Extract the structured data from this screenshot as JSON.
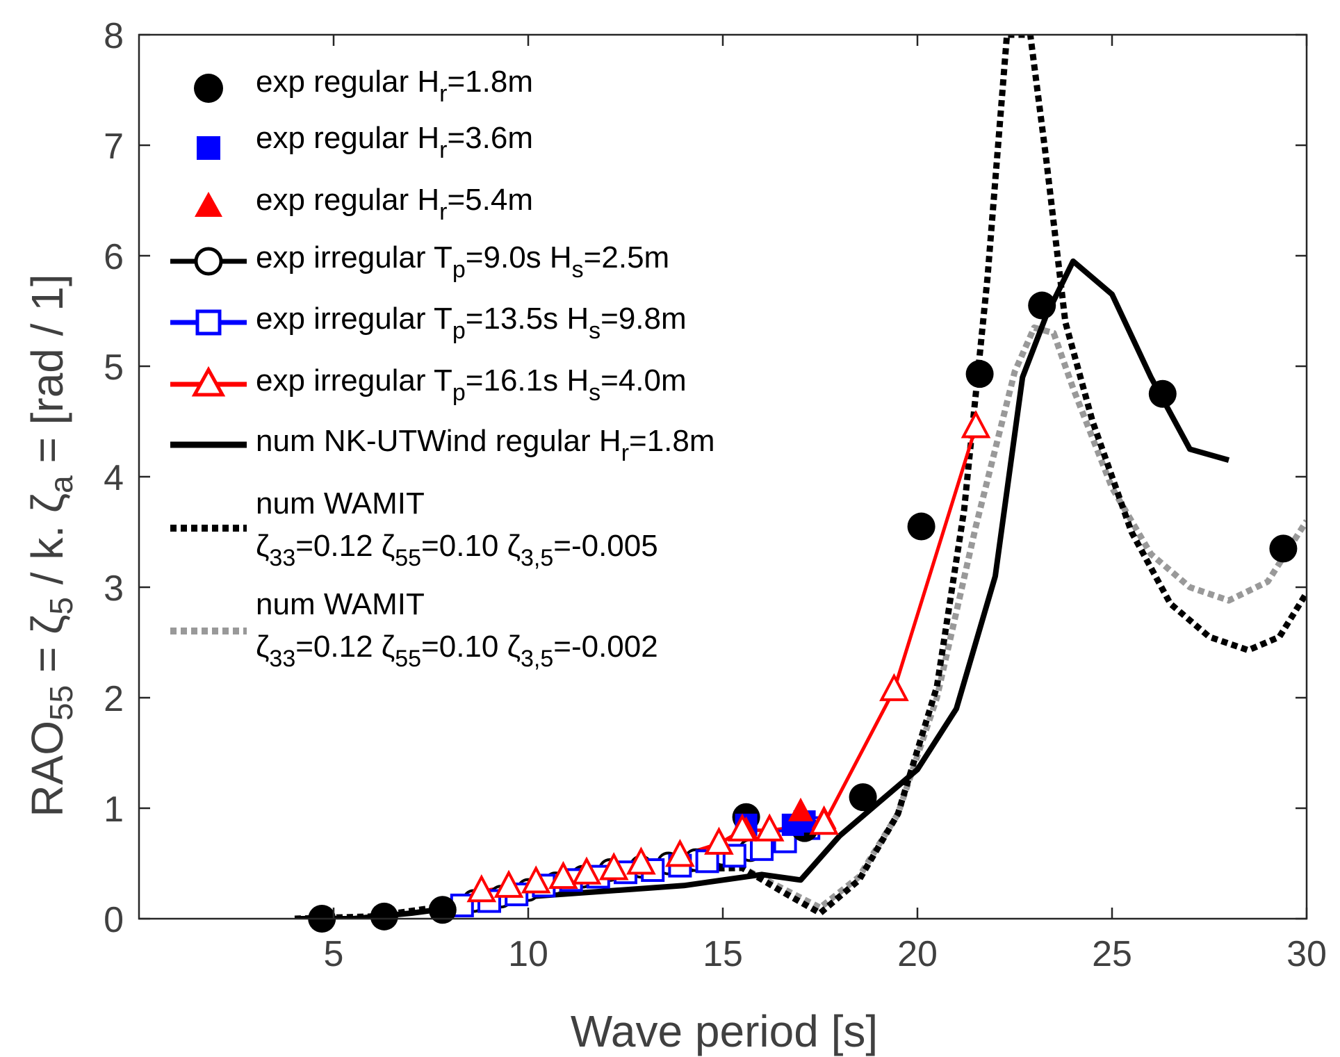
{
  "chart_data": {
    "type": "line",
    "title": "",
    "xlabel": "Wave period [s]",
    "ylabel": {
      "main": "RAO",
      "sub1": "55",
      "mid1": " = ",
      "zeta": "ζ",
      "sub2": "5",
      "mid2": " / k. ",
      "zeta2": "ζ",
      "sub3": "a",
      "tail": "  = [rad / 1]"
    },
    "xlim": [
      0,
      30
    ],
    "ylim": [
      0,
      8
    ],
    "xticks": [
      5,
      10,
      15,
      20,
      25,
      30
    ],
    "yticks": [
      0,
      1,
      2,
      3,
      4,
      5,
      6,
      7,
      8
    ],
    "grid": false,
    "legend_position": "top-left",
    "series": [
      {
        "name": "exp regular H_r=1.8m",
        "label": {
          "pre": "exp regular H",
          "sub": "r",
          "post": "=1.8m"
        },
        "color": "#000000",
        "marker": "circle-filled",
        "line": "none",
        "x": [
          4.7,
          6.3,
          7.8,
          15.6,
          17.1,
          18.6,
          20.1,
          21.6,
          23.2,
          26.3,
          29.4
        ],
        "y": [
          0.0,
          0.02,
          0.08,
          0.92,
          0.82,
          1.1,
          3.55,
          4.93,
          5.55,
          4.75,
          3.35
        ]
      },
      {
        "name": "exp regular H_r=3.6m",
        "label": {
          "pre": "exp regular H",
          "sub": "r",
          "post": "=3.6m"
        },
        "color": "#0000ff",
        "marker": "square-filled",
        "line": "none",
        "x": [
          15.6,
          16.8,
          17.1
        ],
        "y": [
          0.85,
          0.85,
          0.88
        ]
      },
      {
        "name": "exp regular H_r=5.4m",
        "label": {
          "pre": "exp regular H",
          "sub": "r",
          "post": "=5.4m"
        },
        "color": "#ff0000",
        "marker": "triangle-filled",
        "line": "none",
        "x": [
          15.6,
          17.0,
          17.6
        ],
        "y": [
          0.8,
          0.97,
          0.9
        ]
      },
      {
        "name": "exp irregular Tp=9.0s Hs=2.5m",
        "label": {
          "pre": "exp irregular T",
          "sub": "p",
          "mid": "=9.0s H",
          "sub2": "s",
          "post": "=2.5m"
        },
        "color": "#000000",
        "marker": "circle-open",
        "line": "solid",
        "x": [
          8.6,
          9.3,
          10.0,
          10.7,
          11.4,
          12.1,
          12.9,
          13.6,
          14.3,
          15.0,
          15.7
        ],
        "y": [
          0.16,
          0.2,
          0.26,
          0.32,
          0.38,
          0.44,
          0.47,
          0.5,
          0.53,
          0.58,
          0.62
        ]
      },
      {
        "name": "exp irregular Tp=13.5s Hs=9.8m",
        "label": {
          "pre": "exp irregular T",
          "sub": "p",
          "mid": "=13.5s H",
          "sub2": "s",
          "post": "=9.8m"
        },
        "color": "#0000ff",
        "marker": "square-open",
        "line": "solid",
        "x": [
          8.3,
          9.0,
          9.7,
          10.4,
          11.1,
          11.8,
          12.5,
          13.2,
          13.9,
          14.6,
          15.3,
          16.0,
          16.6,
          17.2
        ],
        "y": [
          0.12,
          0.16,
          0.22,
          0.3,
          0.35,
          0.38,
          0.42,
          0.44,
          0.48,
          0.52,
          0.57,
          0.63,
          0.7,
          0.82
        ]
      },
      {
        "name": "exp irregular Tp=16.1s Hs=4.0m",
        "label": {
          "pre": "exp irregular T",
          "sub": "p",
          "mid": "=16.1s H",
          "sub2": "s",
          "post": "=4.0m"
        },
        "color": "#ff0000",
        "marker": "triangle-open",
        "line": "solid",
        "x": [
          8.8,
          9.5,
          10.2,
          10.9,
          11.5,
          12.2,
          12.9,
          13.9,
          14.9,
          15.5,
          16.2,
          17.6,
          19.4,
          21.5
        ],
        "y": [
          0.25,
          0.29,
          0.33,
          0.37,
          0.41,
          0.45,
          0.5,
          0.57,
          0.68,
          0.8,
          0.8,
          0.86,
          2.07,
          4.45
        ]
      },
      {
        "name": "num NK-UTWind regular H_r=1.8m",
        "label": {
          "pre": "num NK-UTWind regular H",
          "sub": "r",
          "post": "=1.8m"
        },
        "color": "#000000",
        "marker": "none",
        "line": "solid-thick",
        "x": [
          4.0,
          5.5,
          7.0,
          8.5,
          10.0,
          12.0,
          14.0,
          16.0,
          17.0,
          18.0,
          19.0,
          20.0,
          21.0,
          22.0,
          22.7,
          23.3,
          24.0,
          25.0,
          26.0,
          27.0,
          28.0
        ],
        "y": [
          0.0,
          0.0,
          0.05,
          0.12,
          0.2,
          0.25,
          0.3,
          0.4,
          0.35,
          0.75,
          1.05,
          1.35,
          1.9,
          3.1,
          4.9,
          5.45,
          5.95,
          5.65,
          4.9,
          4.25,
          4.15
        ]
      },
      {
        "name": "num WAMIT ζ33=0.12 ζ55=0.10 ζ3,5=-0.005",
        "label": {
          "line1": "num WAMIT",
          "z1": "ζ",
          "s1": "33",
          "t1": "=0.12 ",
          "z2": "ζ",
          "s2": "55",
          "t2": "=0.10 ",
          "z3": "ζ",
          "s3": "3,5",
          "t3": "=-0.005"
        },
        "color": "#000000",
        "marker": "none",
        "line": "dotted",
        "x": [
          4.0,
          6.0,
          8.0,
          10.0,
          12.0,
          14.0,
          15.5,
          16.5,
          17.5,
          18.5,
          19.5,
          20.5,
          21.2,
          21.8,
          22.3,
          22.6,
          22.9,
          23.3,
          23.8,
          24.5,
          25.5,
          26.5,
          27.5,
          28.5,
          29.3,
          30.0
        ],
        "y": [
          0.0,
          0.02,
          0.12,
          0.26,
          0.38,
          0.45,
          0.46,
          0.25,
          0.05,
          0.35,
          0.95,
          2.1,
          3.7,
          5.8,
          8.0,
          8.0,
          8.0,
          6.9,
          5.4,
          4.5,
          3.5,
          2.85,
          2.55,
          2.43,
          2.55,
          2.95
        ]
      },
      {
        "name": "num WAMIT ζ33=0.12 ζ55=0.10 ζ3,5=-0.002",
        "label": {
          "line1": "num WAMIT",
          "z1": "ζ",
          "s1": "33",
          "t1": "=0.12 ",
          "z2": "ζ",
          "s2": "55",
          "t2": "=0.10 ",
          "z3": "ζ",
          "s3": "3,5",
          "t3": "=-0.002"
        },
        "color": "#999999",
        "marker": "none",
        "line": "dotted",
        "x": [
          4.0,
          6.0,
          8.0,
          10.0,
          12.0,
          14.0,
          15.5,
          16.5,
          17.5,
          18.5,
          19.5,
          20.5,
          21.5,
          22.5,
          23.0,
          23.5,
          24.0,
          25.0,
          26.0,
          27.0,
          28.0,
          29.0,
          30.0
        ],
        "y": [
          0.0,
          0.02,
          0.12,
          0.26,
          0.38,
          0.45,
          0.46,
          0.28,
          0.1,
          0.38,
          0.95,
          2.0,
          3.55,
          4.95,
          5.35,
          5.3,
          4.8,
          3.9,
          3.3,
          3.0,
          2.88,
          3.05,
          3.6
        ]
      }
    ]
  }
}
